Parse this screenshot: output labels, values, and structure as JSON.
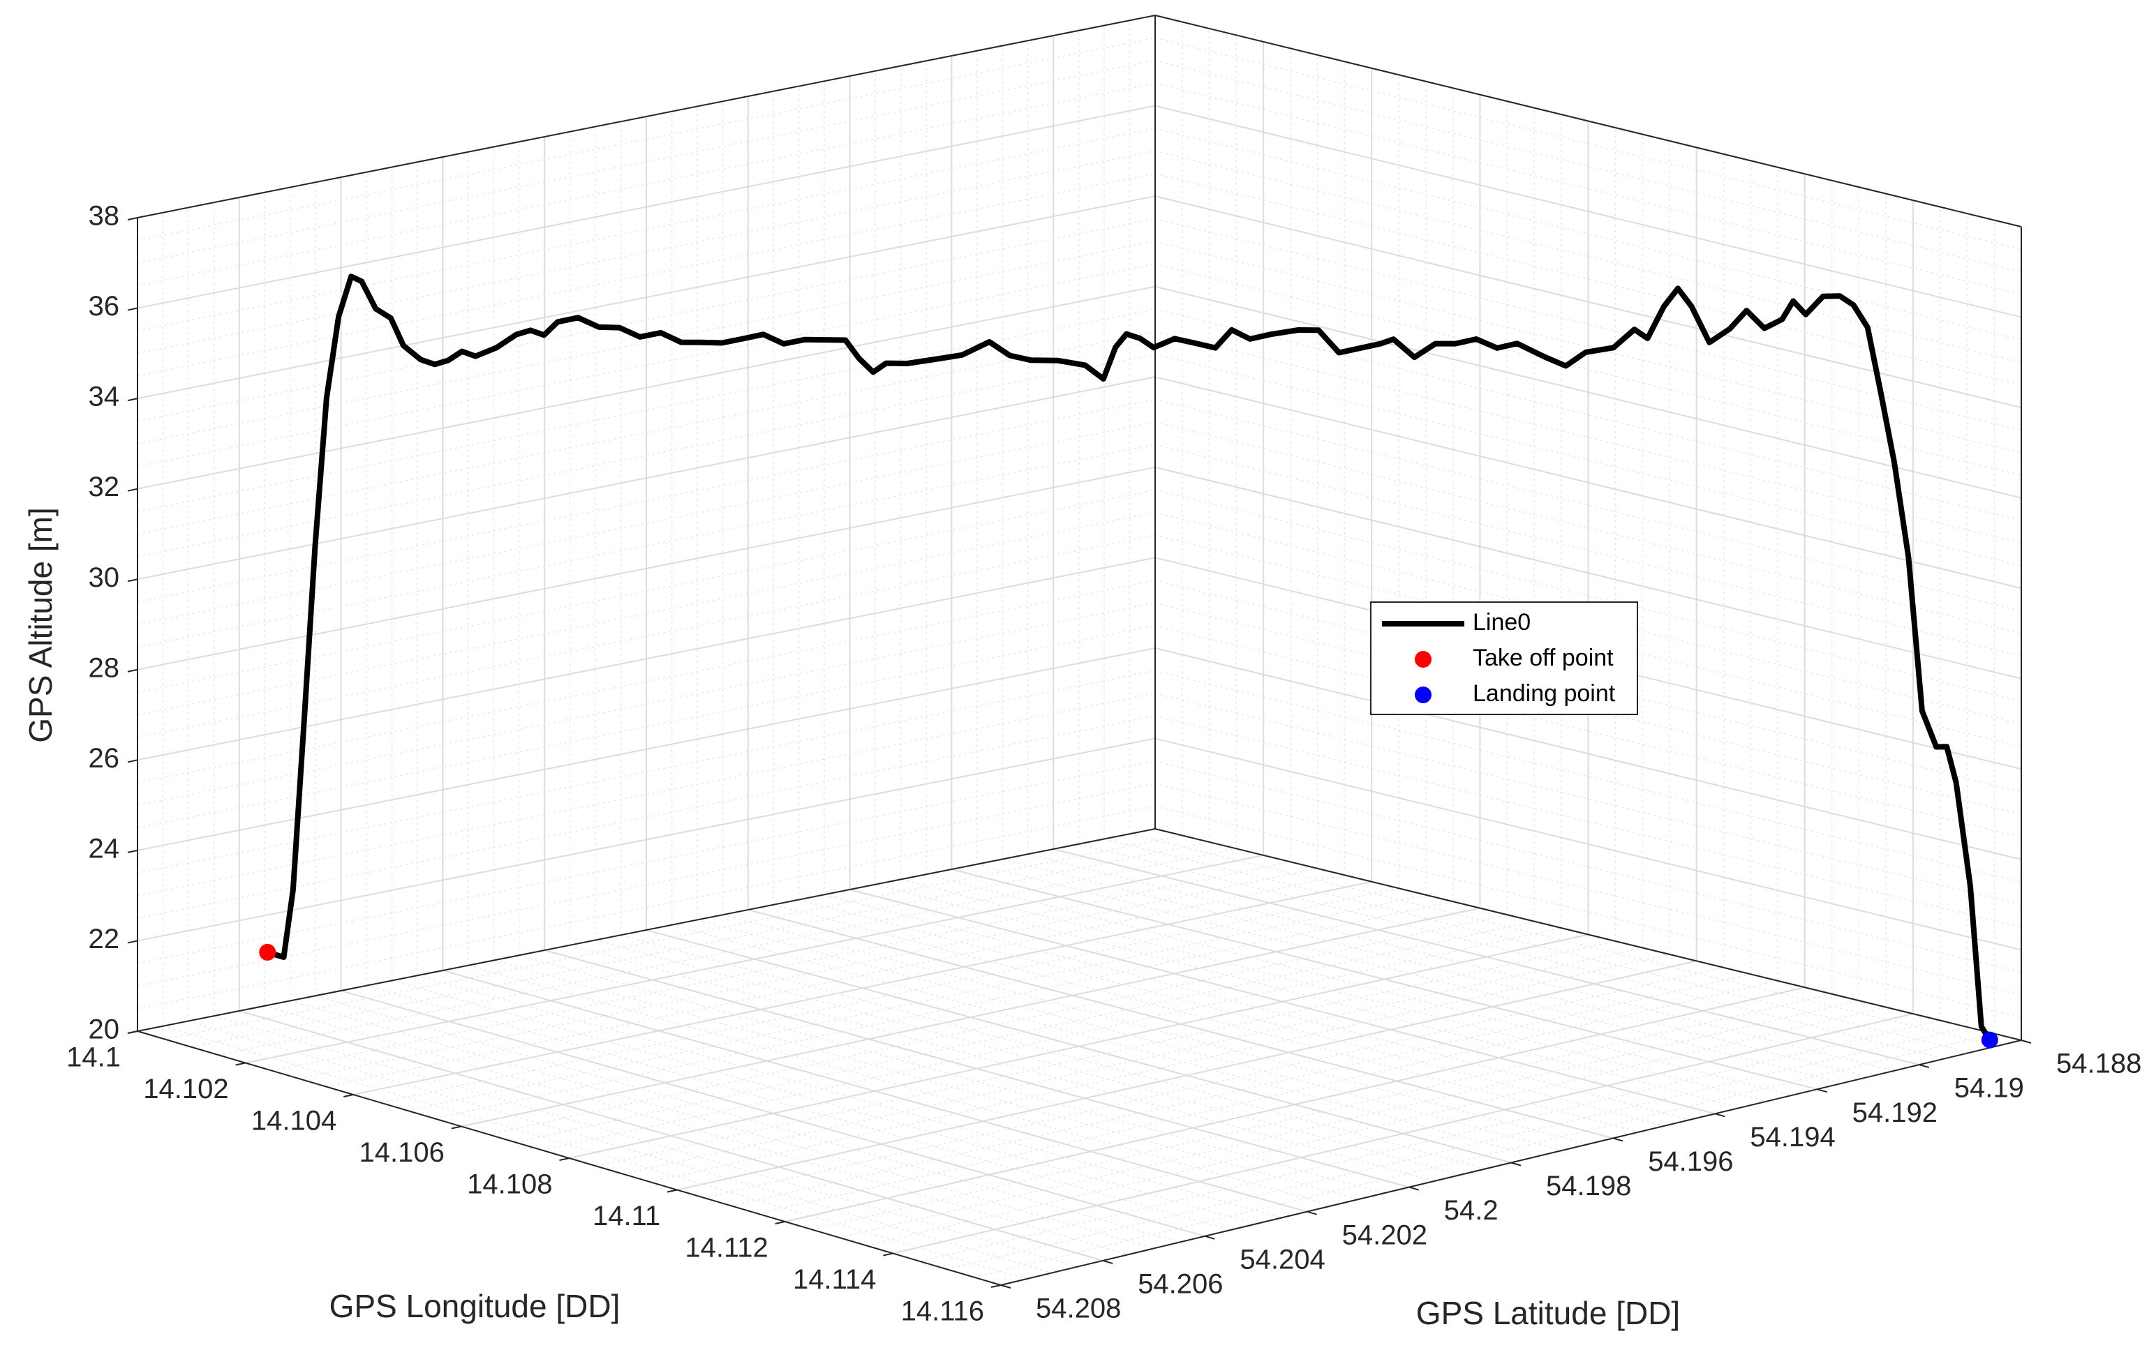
{
  "chart_data": {
    "type": "line3d",
    "xlabel": "GPS Longitude [DD]",
    "ylabel": "GPS Latitude [DD]",
    "zlabel": "GPS Altitude [m]",
    "xlim": [
      14.1,
      14.116
    ],
    "ylim": [
      54.188,
      54.208
    ],
    "zlim": [
      20,
      38
    ],
    "xticks": [
      14.1,
      14.102,
      14.104,
      14.106,
      14.108,
      14.11,
      14.112,
      14.114,
      14.116
    ],
    "yticks": [
      54.188,
      54.19,
      54.192,
      54.194,
      54.196,
      54.198,
      54.2,
      54.202,
      54.204,
      54.206,
      54.208
    ],
    "zticks": [
      20,
      22,
      24,
      26,
      28,
      30,
      32,
      34,
      36,
      38
    ],
    "grid": true,
    "minor_grid": true,
    "series": [
      {
        "name": "Line0",
        "color": "#000000",
        "x": [
          14.1009,
          14.10104,
          14.10112,
          14.10122,
          14.10131,
          14.10141,
          14.10151,
          14.10162,
          14.10171,
          14.10183,
          14.10196,
          14.10207,
          14.10222,
          14.10234,
          14.10246,
          14.10257,
          14.10269,
          14.10287,
          14.10304,
          14.10316,
          14.10328,
          14.1034,
          14.10357,
          14.10375,
          14.10393,
          14.1041,
          14.10428,
          14.10446,
          14.10463,
          14.10481,
          14.10499,
          14.10516,
          14.10534,
          14.10552,
          14.10569,
          14.10587,
          14.10599,
          14.10611,
          14.10622,
          14.1064,
          14.10664,
          14.10687,
          14.10711,
          14.10728,
          14.10746,
          14.1077,
          14.10793,
          14.10809,
          14.10819,
          14.10829,
          14.1084,
          14.10852,
          14.1087,
          14.10888,
          14.10905,
          14.10919,
          14.10935,
          14.10952,
          14.10976,
          14.10994,
          14.11011,
          14.11029,
          14.11047,
          14.11058,
          14.11076,
          14.11094,
          14.11111,
          14.11129,
          14.11147,
          14.11164,
          14.11188,
          14.11206,
          14.11223,
          14.11247,
          14.11265,
          14.11276,
          14.1129,
          14.11302,
          14.11314,
          14.11329,
          14.11347,
          14.11361,
          14.11376,
          14.11392,
          14.11401,
          14.11412,
          14.11427,
          14.11441,
          14.11453,
          14.11465,
          14.11477,
          14.11488,
          14.115,
          14.11512,
          14.11524,
          14.11533,
          14.11541,
          14.11553,
          14.11563,
          14.1157
        ],
        "y": [
          54.2064,
          54.20623,
          54.20613,
          54.20601,
          54.2059,
          54.20578,
          54.20565,
          54.20552,
          54.20541,
          54.20526,
          54.2051,
          54.20497,
          54.20479,
          54.20464,
          54.2045,
          54.20435,
          54.20421,
          54.20399,
          54.20378,
          54.20363,
          54.20349,
          54.20335,
          54.20313,
          54.20291,
          54.2027,
          54.20248,
          54.20226,
          54.20205,
          54.20183,
          54.20162,
          54.2014,
          54.20118,
          54.20097,
          54.20075,
          54.20054,
          54.20032,
          54.20018,
          54.20003,
          54.19989,
          54.19967,
          54.19938,
          54.19909,
          54.19881,
          54.19859,
          54.19837,
          54.19809,
          54.1978,
          54.19761,
          54.19748,
          54.19737,
          54.19722,
          54.19708,
          54.19686,
          54.19664,
          54.19643,
          54.19626,
          54.19607,
          54.19585,
          54.19556,
          54.19535,
          54.19513,
          54.19492,
          54.1947,
          54.19456,
          54.19434,
          54.19412,
          54.19391,
          54.19369,
          54.19347,
          54.19326,
          54.19297,
          54.19275,
          54.19254,
          54.19225,
          54.19203,
          54.19189,
          54.19172,
          54.19157,
          54.19143,
          54.19124,
          54.19103,
          54.19085,
          54.19066,
          54.19048,
          54.19036,
          54.19023,
          54.19005,
          54.18987,
          54.18973,
          54.18958,
          54.18944,
          54.1893,
          54.18915,
          54.18901,
          54.18886,
          54.18875,
          54.18865,
          54.1885,
          54.18839,
          54.1883
        ],
        "z": [
          21.7,
          21.6,
          23.1,
          27.0,
          30.7,
          34.0,
          35.8,
          36.7,
          36.6,
          36.0,
          35.8,
          35.2,
          34.9,
          34.8,
          34.9,
          35.1,
          35.0,
          35.2,
          35.5,
          35.6,
          35.5,
          35.8,
          35.9,
          35.7,
          35.7,
          35.5,
          35.6,
          35.4,
          35.4,
          35.4,
          35.5,
          35.6,
          35.4,
          35.5,
          35.5,
          35.5,
          35.1,
          34.8,
          35.0,
          35.0,
          35.1,
          35.2,
          35.5,
          35.2,
          35.1,
          35.1,
          35.0,
          34.7,
          35.4,
          35.7,
          35.6,
          35.4,
          35.6,
          35.5,
          35.4,
          35.8,
          35.6,
          35.7,
          35.8,
          35.8,
          35.3,
          35.4,
          35.5,
          35.6,
          35.2,
          35.5,
          35.5,
          35.6,
          35.4,
          35.5,
          35.2,
          35.0,
          35.3,
          35.4,
          35.8,
          35.6,
          36.3,
          36.7,
          36.3,
          35.5,
          35.8,
          36.2,
          35.8,
          36.0,
          36.4,
          36.1,
          36.5,
          36.5,
          36.3,
          35.8,
          34.3,
          32.8,
          30.7,
          27.3,
          26.5,
          26.5,
          25.7,
          23.4,
          20.3,
          20.0
        ]
      },
      {
        "name": "Take off point",
        "color": "#ff0000",
        "x": [
          14.1009
        ],
        "y": [
          54.2064
        ],
        "z": [
          21.7
        ]
      },
      {
        "name": "Landing point",
        "color": "#0000ff",
        "x": [
          14.1157
        ],
        "y": [
          54.1883
        ],
        "z": [
          20.0
        ]
      }
    ]
  }
}
